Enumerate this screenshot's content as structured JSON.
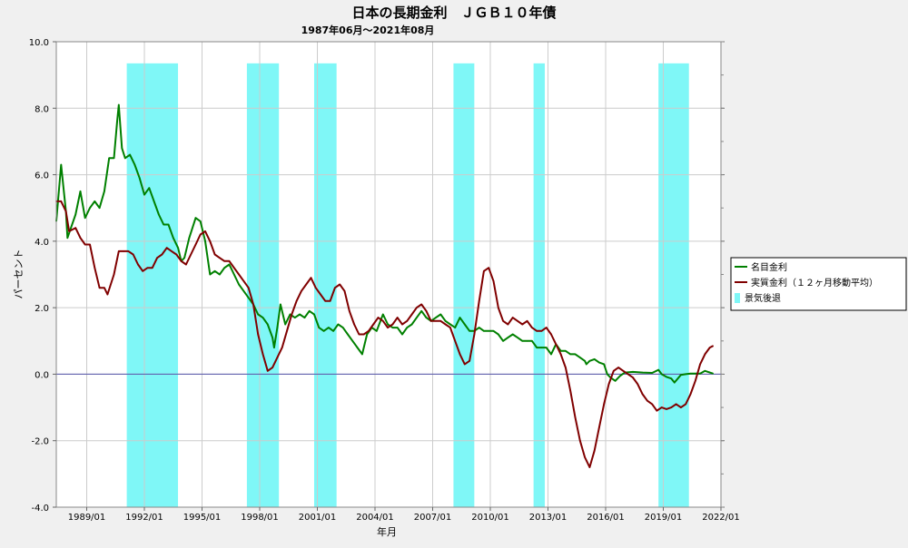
{
  "chart_data": {
    "type": "line",
    "title": "日本の長期金利　ＪＧＢ１０年債",
    "subtitle": "1987年06月～2021年08月",
    "xlabel": "年月",
    "ylabel": "パーセント",
    "ylim": [
      -4.0,
      10.0
    ],
    "xlim": [
      "1987/06",
      "2022/01"
    ],
    "y_ticks": [
      "-4.0",
      "-2.0",
      "0.0",
      "2.0",
      "4.0",
      "6.0",
      "8.0",
      "10.0"
    ],
    "x_ticks": [
      "1989/01",
      "1992/01",
      "1995/01",
      "1998/01",
      "2001/01",
      "2004/01",
      "2007/01",
      "2010/01",
      "2013/01",
      "2016/01",
      "2019/01",
      "2022/01"
    ],
    "grid": true,
    "legend_position": "right",
    "legend": [
      {
        "label": "名目金利",
        "kind": "line",
        "color": "#008000"
      },
      {
        "label": "実質金利（１２ヶ月移動平均）",
        "kind": "line",
        "color": "#800000"
      },
      {
        "label": "景気後退",
        "kind": "band",
        "color": "#7ff7f7"
      }
    ],
    "recession_periods": [
      [
        "1991/02",
        "1993/10"
      ],
      [
        "1997/05",
        "1999/01"
      ],
      [
        "2000/11",
        "2002/01"
      ],
      [
        "2008/02",
        "2009/03"
      ],
      [
        "2012/04",
        "2012/11"
      ],
      [
        "2018/10",
        "2020/05"
      ]
    ],
    "series": [
      {
        "name": "名目金利",
        "color": "#008000",
        "points": [
          [
            "1987/06",
            4.6
          ],
          [
            "1987/09",
            6.3
          ],
          [
            "1987/12",
            4.9
          ],
          [
            "1988/01",
            4.1
          ],
          [
            "1988/06",
            4.8
          ],
          [
            "1988/09",
            5.5
          ],
          [
            "1988/12",
            4.7
          ],
          [
            "1989/03",
            5.0
          ],
          [
            "1989/06",
            5.2
          ],
          [
            "1989/09",
            5.0
          ],
          [
            "1989/12",
            5.5
          ],
          [
            "1990/03",
            6.5
          ],
          [
            "1990/06",
            6.5
          ],
          [
            "1990/08",
            7.6
          ],
          [
            "1990/09",
            8.1
          ],
          [
            "1990/11",
            6.8
          ],
          [
            "1991/01",
            6.5
          ],
          [
            "1991/04",
            6.6
          ],
          [
            "1991/07",
            6.3
          ],
          [
            "1991/10",
            5.9
          ],
          [
            "1992/01",
            5.4
          ],
          [
            "1992/04",
            5.6
          ],
          [
            "1992/07",
            5.2
          ],
          [
            "1992/10",
            4.8
          ],
          [
            "1993/01",
            4.5
          ],
          [
            "1993/04",
            4.5
          ],
          [
            "1993/07",
            4.1
          ],
          [
            "1993/10",
            3.8
          ],
          [
            "1993/12",
            3.4
          ],
          [
            "1994/02",
            3.5
          ],
          [
            "1994/05",
            4.1
          ],
          [
            "1994/09",
            4.7
          ],
          [
            "1994/12",
            4.6
          ],
          [
            "1995/03",
            4.0
          ],
          [
            "1995/06",
            3.0
          ],
          [
            "1995/09",
            3.1
          ],
          [
            "1995/12",
            3.0
          ],
          [
            "1996/03",
            3.2
          ],
          [
            "1996/06",
            3.3
          ],
          [
            "1996/09",
            3.0
          ],
          [
            "1996/12",
            2.7
          ],
          [
            "1997/03",
            2.5
          ],
          [
            "1997/06",
            2.3
          ],
          [
            "1997/09",
            2.1
          ],
          [
            "1997/12",
            1.8
          ],
          [
            "1998/03",
            1.7
          ],
          [
            "1998/06",
            1.5
          ],
          [
            "1998/09",
            1.1
          ],
          [
            "1998/10",
            0.8
          ],
          [
            "1998/12",
            1.4
          ],
          [
            "1999/02",
            2.1
          ],
          [
            "1999/05",
            1.5
          ],
          [
            "1999/08",
            1.8
          ],
          [
            "1999/11",
            1.7
          ],
          [
            "2000/02",
            1.8
          ],
          [
            "2000/05",
            1.7
          ],
          [
            "2000/08",
            1.9
          ],
          [
            "2000/11",
            1.8
          ],
          [
            "2001/02",
            1.4
          ],
          [
            "2001/05",
            1.3
          ],
          [
            "2001/08",
            1.4
          ],
          [
            "2001/11",
            1.3
          ],
          [
            "2002/02",
            1.5
          ],
          [
            "2002/05",
            1.4
          ],
          [
            "2002/08",
            1.2
          ],
          [
            "2002/11",
            1.0
          ],
          [
            "2003/02",
            0.8
          ],
          [
            "2003/05",
            0.6
          ],
          [
            "2003/08",
            1.2
          ],
          [
            "2003/11",
            1.4
          ],
          [
            "2004/02",
            1.3
          ],
          [
            "2004/06",
            1.8
          ],
          [
            "2004/09",
            1.5
          ],
          [
            "2004/12",
            1.4
          ],
          [
            "2005/03",
            1.4
          ],
          [
            "2005/06",
            1.2
          ],
          [
            "2005/09",
            1.4
          ],
          [
            "2005/12",
            1.5
          ],
          [
            "2006/03",
            1.7
          ],
          [
            "2006/06",
            1.9
          ],
          [
            "2006/09",
            1.7
          ],
          [
            "2006/12",
            1.6
          ],
          [
            "2007/03",
            1.7
          ],
          [
            "2007/06",
            1.8
          ],
          [
            "2007/09",
            1.6
          ],
          [
            "2007/12",
            1.5
          ],
          [
            "2008/03",
            1.4
          ],
          [
            "2008/06",
            1.7
          ],
          [
            "2008/09",
            1.5
          ],
          [
            "2008/12",
            1.3
          ],
          [
            "2009/03",
            1.3
          ],
          [
            "2009/06",
            1.4
          ],
          [
            "2009/09",
            1.3
          ],
          [
            "2009/12",
            1.3
          ],
          [
            "2010/03",
            1.3
          ],
          [
            "2010/06",
            1.2
          ],
          [
            "2010/09",
            1.0
          ],
          [
            "2010/12",
            1.1
          ],
          [
            "2011/03",
            1.2
          ],
          [
            "2011/06",
            1.1
          ],
          [
            "2011/09",
            1.0
          ],
          [
            "2011/12",
            1.0
          ],
          [
            "2012/03",
            1.0
          ],
          [
            "2012/06",
            0.8
          ],
          [
            "2012/09",
            0.8
          ],
          [
            "2012/12",
            0.8
          ],
          [
            "2013/03",
            0.6
          ],
          [
            "2013/06",
            0.9
          ],
          [
            "2013/09",
            0.7
          ],
          [
            "2013/12",
            0.7
          ],
          [
            "2014/03",
            0.6
          ],
          [
            "2014/06",
            0.6
          ],
          [
            "2014/09",
            0.5
          ],
          [
            "2014/12",
            0.4
          ],
          [
            "2015/01",
            0.3
          ],
          [
            "2015/03",
            0.4
          ],
          [
            "2015/06",
            0.45
          ],
          [
            "2015/09",
            0.35
          ],
          [
            "2015/12",
            0.3
          ],
          [
            "2016/02",
            0.0
          ],
          [
            "2016/04",
            -0.1
          ],
          [
            "2016/07",
            -0.2
          ],
          [
            "2016/10",
            -0.05
          ],
          [
            "2017/01",
            0.05
          ],
          [
            "2017/06",
            0.07
          ],
          [
            "2017/12",
            0.05
          ],
          [
            "2018/06",
            0.04
          ],
          [
            "2018/10",
            0.13
          ],
          [
            "2018/12",
            0.0
          ],
          [
            "2019/03",
            -0.08
          ],
          [
            "2019/06",
            -0.13
          ],
          [
            "2019/08",
            -0.25
          ],
          [
            "2019/12",
            -0.02
          ],
          [
            "2020/03",
            0.0
          ],
          [
            "2020/06",
            0.02
          ],
          [
            "2020/09",
            0.02
          ],
          [
            "2020/12",
            0.02
          ],
          [
            "2021/03",
            0.1
          ],
          [
            "2021/06",
            0.05
          ],
          [
            "2021/08",
            0.02
          ]
        ]
      },
      {
        "name": "実質金利（１２ヶ月移動平均）",
        "color": "#800000",
        "points": [
          [
            "1987/06",
            5.2
          ],
          [
            "1987/09",
            5.2
          ],
          [
            "1987/12",
            4.9
          ],
          [
            "1988/02",
            4.3
          ],
          [
            "1988/06",
            4.4
          ],
          [
            "1988/09",
            4.1
          ],
          [
            "1988/12",
            3.9
          ],
          [
            "1989/03",
            3.9
          ],
          [
            "1989/06",
            3.2
          ],
          [
            "1989/09",
            2.6
          ],
          [
            "1989/12",
            2.6
          ],
          [
            "1990/02",
            2.4
          ],
          [
            "1990/06",
            3.0
          ],
          [
            "1990/09",
            3.7
          ],
          [
            "1990/12",
            3.7
          ],
          [
            "1991/03",
            3.7
          ],
          [
            "1991/06",
            3.6
          ],
          [
            "1991/09",
            3.3
          ],
          [
            "1991/12",
            3.1
          ],
          [
            "1992/03",
            3.2
          ],
          [
            "1992/06",
            3.2
          ],
          [
            "1992/09",
            3.5
          ],
          [
            "1992/12",
            3.6
          ],
          [
            "1993/03",
            3.8
          ],
          [
            "1993/06",
            3.7
          ],
          [
            "1993/09",
            3.6
          ],
          [
            "1993/12",
            3.4
          ],
          [
            "1994/03",
            3.3
          ],
          [
            "1994/06",
            3.6
          ],
          [
            "1994/09",
            3.9
          ],
          [
            "1994/12",
            4.2
          ],
          [
            "1995/03",
            4.3
          ],
          [
            "1995/06",
            4.0
          ],
          [
            "1995/09",
            3.6
          ],
          [
            "1995/12",
            3.5
          ],
          [
            "1996/03",
            3.4
          ],
          [
            "1996/06",
            3.4
          ],
          [
            "1996/09",
            3.2
          ],
          [
            "1996/12",
            3.0
          ],
          [
            "1997/03",
            2.8
          ],
          [
            "1997/06",
            2.6
          ],
          [
            "1997/09",
            2.1
          ],
          [
            "1997/12",
            1.2
          ],
          [
            "1998/03",
            0.6
          ],
          [
            "1998/06",
            0.1
          ],
          [
            "1998/09",
            0.2
          ],
          [
            "1998/12",
            0.5
          ],
          [
            "1999/03",
            0.8
          ],
          [
            "1999/06",
            1.3
          ],
          [
            "1999/09",
            1.8
          ],
          [
            "1999/12",
            2.2
          ],
          [
            "2000/03",
            2.5
          ],
          [
            "2000/06",
            2.7
          ],
          [
            "2000/09",
            2.9
          ],
          [
            "2000/12",
            2.6
          ],
          [
            "2001/03",
            2.4
          ],
          [
            "2001/06",
            2.2
          ],
          [
            "2001/09",
            2.2
          ],
          [
            "2001/12",
            2.6
          ],
          [
            "2002/03",
            2.7
          ],
          [
            "2002/06",
            2.5
          ],
          [
            "2002/09",
            1.9
          ],
          [
            "2002/12",
            1.5
          ],
          [
            "2003/03",
            1.2
          ],
          [
            "2003/06",
            1.2
          ],
          [
            "2003/09",
            1.3
          ],
          [
            "2003/12",
            1.5
          ],
          [
            "2004/03",
            1.7
          ],
          [
            "2004/06",
            1.6
          ],
          [
            "2004/09",
            1.4
          ],
          [
            "2004/12",
            1.5
          ],
          [
            "2005/03",
            1.7
          ],
          [
            "2005/06",
            1.5
          ],
          [
            "2005/09",
            1.6
          ],
          [
            "2005/12",
            1.8
          ],
          [
            "2006/03",
            2.0
          ],
          [
            "2006/06",
            2.1
          ],
          [
            "2006/09",
            1.9
          ],
          [
            "2006/12",
            1.6
          ],
          [
            "2007/03",
            1.6
          ],
          [
            "2007/06",
            1.6
          ],
          [
            "2007/09",
            1.5
          ],
          [
            "2007/12",
            1.4
          ],
          [
            "2008/03",
            1.0
          ],
          [
            "2008/06",
            0.6
          ],
          [
            "2008/09",
            0.3
          ],
          [
            "2008/12",
            0.4
          ],
          [
            "2009/03",
            1.2
          ],
          [
            "2009/06",
            2.2
          ],
          [
            "2009/09",
            3.1
          ],
          [
            "2009/12",
            3.2
          ],
          [
            "2010/03",
            2.8
          ],
          [
            "2010/06",
            2.0
          ],
          [
            "2010/09",
            1.6
          ],
          [
            "2010/12",
            1.5
          ],
          [
            "2011/03",
            1.7
          ],
          [
            "2011/06",
            1.6
          ],
          [
            "2011/09",
            1.5
          ],
          [
            "2011/12",
            1.6
          ],
          [
            "2012/03",
            1.4
          ],
          [
            "2012/06",
            1.3
          ],
          [
            "2012/09",
            1.3
          ],
          [
            "2012/12",
            1.4
          ],
          [
            "2013/03",
            1.2
          ],
          [
            "2013/06",
            0.9
          ],
          [
            "2013/09",
            0.6
          ],
          [
            "2013/12",
            0.2
          ],
          [
            "2014/03",
            -0.5
          ],
          [
            "2014/06",
            -1.3
          ],
          [
            "2014/09",
            -2.0
          ],
          [
            "2014/12",
            -2.5
          ],
          [
            "2015/03",
            -2.8
          ],
          [
            "2015/06",
            -2.3
          ],
          [
            "2015/09",
            -1.6
          ],
          [
            "2015/12",
            -0.9
          ],
          [
            "2016/03",
            -0.3
          ],
          [
            "2016/06",
            0.1
          ],
          [
            "2016/09",
            0.2
          ],
          [
            "2016/12",
            0.1
          ],
          [
            "2017/03",
            0.0
          ],
          [
            "2017/06",
            -0.1
          ],
          [
            "2017/09",
            -0.3
          ],
          [
            "2017/12",
            -0.6
          ],
          [
            "2018/03",
            -0.8
          ],
          [
            "2018/06",
            -0.9
          ],
          [
            "2018/09",
            -1.1
          ],
          [
            "2018/12",
            -1.0
          ],
          [
            "2019/03",
            -1.05
          ],
          [
            "2019/06",
            -1.0
          ],
          [
            "2019/09",
            -0.9
          ],
          [
            "2019/12",
            -1.0
          ],
          [
            "2020/03",
            -0.9
          ],
          [
            "2020/06",
            -0.6
          ],
          [
            "2020/09",
            -0.2
          ],
          [
            "2020/12",
            0.3
          ],
          [
            "2021/03",
            0.6
          ],
          [
            "2021/06",
            0.8
          ],
          [
            "2021/08",
            0.85
          ]
        ]
      }
    ]
  }
}
